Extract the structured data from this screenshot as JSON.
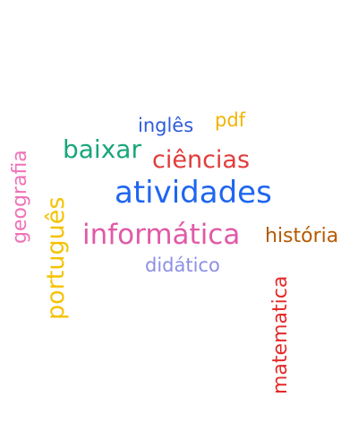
{
  "words": {
    "ingles": {
      "text": "inglês",
      "color": "#2e5bdc"
    },
    "pdf": {
      "text": "pdf",
      "color": "#f2b400"
    },
    "baixar": {
      "text": "baixar",
      "color": "#18a67a"
    },
    "ciencias": {
      "text": "ciências",
      "color": "#e23b3b"
    },
    "atividades": {
      "text": "atividades",
      "color": "#1f66f0"
    },
    "informatica": {
      "text": "informática",
      "color": "#e15aa7"
    },
    "historia": {
      "text": "história",
      "color": "#b55a00"
    },
    "didatico": {
      "text": "didático",
      "color": "#8c8fe6"
    },
    "geografia": {
      "text": "geografia",
      "color": "#f071b7"
    },
    "portugues": {
      "text": "português",
      "color": "#f5c200"
    },
    "matematica": {
      "text": "matematica",
      "color": "#e52a2a"
    }
  }
}
